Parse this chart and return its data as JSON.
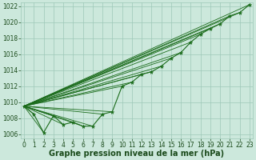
{
  "title": "Graphe pression niveau de la mer (hPa)",
  "x": [
    0,
    1,
    2,
    3,
    4,
    5,
    6,
    7,
    8,
    9,
    10,
    11,
    12,
    13,
    14,
    15,
    16,
    17,
    18,
    19,
    20,
    21,
    22,
    23
  ],
  "pressure": [
    1009.5,
    1008.5,
    1006.2,
    1008.3,
    1007.2,
    1007.5,
    1007.0,
    1007.0,
    1008.5,
    1008.8,
    1012.0,
    1012.5,
    1013.5,
    1013.8,
    1014.5,
    1015.5,
    1016.2,
    1017.5,
    1018.5,
    1019.2,
    1019.8,
    1020.8,
    1021.2,
    1022.2
  ],
  "ylim": [
    1005.5,
    1022.5
  ],
  "yticks": [
    1006,
    1008,
    1010,
    1012,
    1014,
    1016,
    1018,
    1020,
    1022
  ],
  "xlim": [
    -0.3,
    23.3
  ],
  "xticks": [
    0,
    1,
    2,
    3,
    4,
    5,
    6,
    7,
    8,
    9,
    10,
    11,
    12,
    13,
    14,
    15,
    16,
    17,
    18,
    19,
    20,
    21,
    22,
    23
  ],
  "line_color": "#1a6b1a",
  "bg_color": "#cce8dc",
  "grid_color": "#9dc8b8",
  "label_color": "#1a4a1a",
  "tick_fontsize": 5.5,
  "label_fontsize": 7.0
}
